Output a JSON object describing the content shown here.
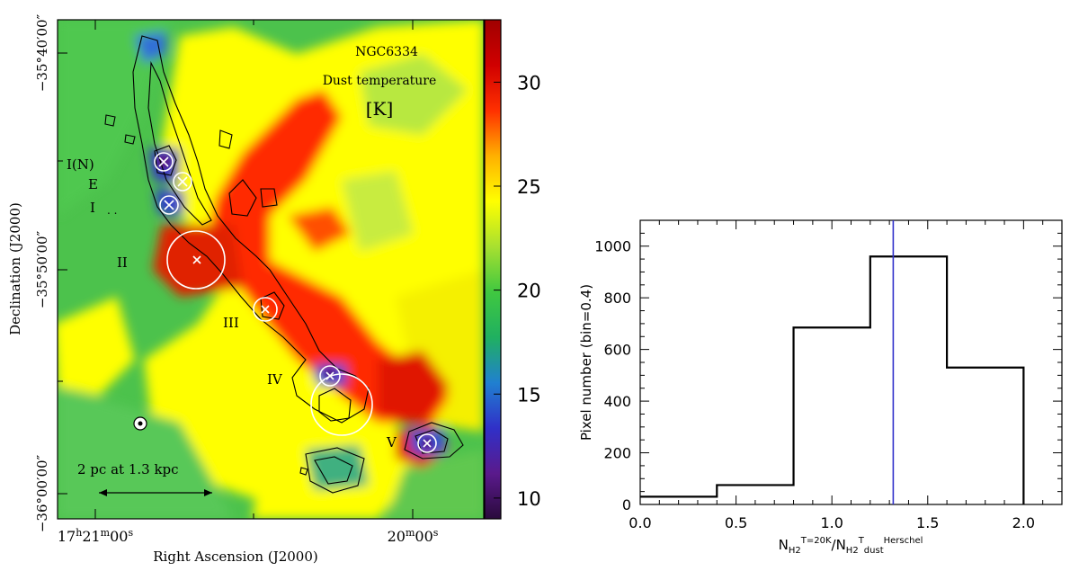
{
  "chart_data": [
    {
      "type": "heatmap",
      "title": "NGC6334",
      "subtitle": "Dust temperature",
      "unit": "[K]",
      "xlabel": "Right Ascension (J2000)",
      "ylabel": "Declination (J2000)",
      "x_ticks": [
        {
          "label": "17h21m00s",
          "parts": [
            "17",
            "h",
            "21",
            "m",
            "00",
            "s"
          ]
        },
        {
          "label": "20m00s",
          "parts": [
            "20",
            "m",
            "00",
            "s"
          ]
        }
      ],
      "y_ticks": [
        {
          "label": "−35°40′00″",
          "dec": -35.6667
        },
        {
          "label": "−35°50′00″",
          "dec": -35.8333
        },
        {
          "label": "−36°00′00″",
          "dec": -36.0
        }
      ],
      "colorbar": {
        "range": [
          9,
          33
        ],
        "ticks": [
          10,
          15,
          20,
          25,
          30
        ],
        "colors": [
          "#2a0a3c",
          "#5a1a8c",
          "#3030c8",
          "#2080d0",
          "#20b060",
          "#40c840",
          "#a8e030",
          "#ffff00",
          "#ffb000",
          "#ff3000",
          "#d00000",
          "#a00000"
        ]
      },
      "regions": [
        {
          "label": "I(N)",
          "has_cross": true
        },
        {
          "label": "E",
          "has_cross": true
        },
        {
          "label": "I",
          "has_cross": true
        },
        {
          "label": "II",
          "has_cross": true
        },
        {
          "label": "III",
          "has_cross": true
        },
        {
          "label": "IV",
          "has_cross": true
        },
        {
          "label": "V",
          "has_cross": true
        }
      ],
      "scale_bar": {
        "label": "2 pc at 1.3 kpc"
      },
      "beam_marker": true
    },
    {
      "type": "histogram",
      "xlabel": {
        "main": "N",
        "sub1": "H2",
        "sup1": "T=20K",
        "slash": "/N",
        "sub2": "H2",
        "sup2": "T",
        "sub3": "dust",
        "sup3": "Herschel"
      },
      "ylabel": "Pixel number (bin=0.4)",
      "xlim": [
        0.0,
        2.2
      ],
      "ylim": [
        0,
        1100
      ],
      "x_ticks": [
        0.0,
        0.5,
        1.0,
        1.5,
        2.0
      ],
      "x_tick_labels": [
        "0.0",
        "0.5",
        "1.0",
        "1.5",
        "2.0"
      ],
      "y_ticks": [
        0,
        200,
        400,
        600,
        800,
        1000
      ],
      "y_tick_labels": [
        "0",
        "200",
        "400",
        "600",
        "800",
        "1000"
      ],
      "bins": [
        {
          "x0": 0.0,
          "x1": 0.4,
          "value": 30
        },
        {
          "x0": 0.4,
          "x1": 0.8,
          "value": 75
        },
        {
          "x0": 0.8,
          "x1": 1.2,
          "value": 685
        },
        {
          "x0": 1.2,
          "x1": 1.6,
          "value": 960
        },
        {
          "x0": 1.6,
          "x1": 2.0,
          "value": 530
        }
      ],
      "vertical_line": {
        "x": 1.32,
        "color": "#3333cc"
      }
    }
  ]
}
